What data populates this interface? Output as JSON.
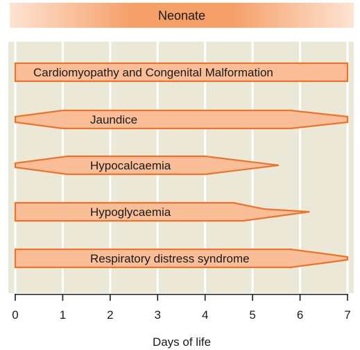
{
  "header": {
    "title": "Neonate"
  },
  "x_axis": {
    "label": "Days of life",
    "min": 0,
    "max": 7,
    "ticks": [
      "0",
      "1",
      "2",
      "3",
      "4",
      "5",
      "6",
      "7"
    ]
  },
  "colors": {
    "panel": "#ece8d8",
    "gridline": "#ffffff",
    "bar_fill": "#f9bd97",
    "bar_stroke": "#e8742e",
    "header_core": "#f6a069",
    "header_edge": "#fde4d3",
    "axis": "#1a1a1a"
  },
  "conditions": [
    {
      "label": "Cardiomyopathy and Congenital Malformation",
      "shape": "block",
      "start_day": 0,
      "end_day": 7
    },
    {
      "label": "Jaundice",
      "shape": "rise-and-fall",
      "start_day": 0,
      "plateau_start_day": 1,
      "plateau_end_day": 5.8,
      "end_day": 7
    },
    {
      "label": "Hypocalcaemia",
      "shape": "rise-and-fall",
      "start_day": 0,
      "plateau_start_day": 1.1,
      "plateau_end_day": 4,
      "end_day": 5.55
    },
    {
      "label": "Hypoglycaemia",
      "shape": "block-then-fall",
      "start_day": 0,
      "plateau_end_day": 4.6,
      "end_day": 6.2
    },
    {
      "label": "Respiratory distress syndrome",
      "shape": "block-then-fall",
      "start_day": 0,
      "plateau_end_day": 5.8,
      "end_day": 7
    }
  ]
}
